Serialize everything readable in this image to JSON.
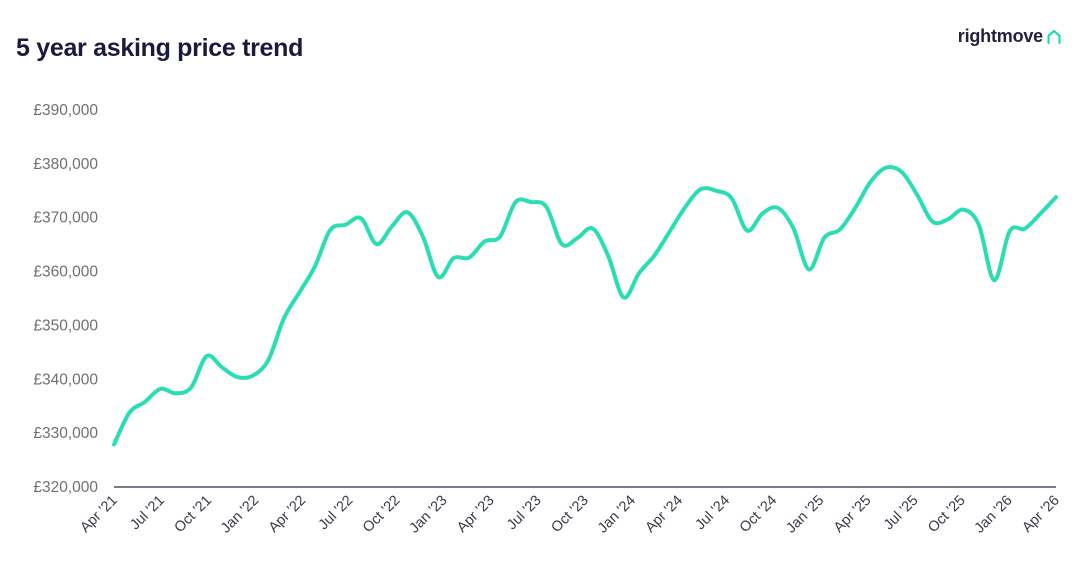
{
  "header": {
    "title": "5 year asking price trend",
    "brand": "rightmove",
    "brand_icon": "house-outline-icon",
    "brand_color": "#15d6a4"
  },
  "chart_data": {
    "type": "line",
    "title": "5 year asking price trend",
    "xlabel": "",
    "ylabel": "",
    "line_color": "#2bddb3",
    "ylim": [
      320000,
      390000
    ],
    "y_ticks": [
      320000,
      330000,
      340000,
      350000,
      360000,
      370000,
      380000,
      390000
    ],
    "y_tick_labels": [
      "£320,000",
      "£330,000",
      "£340,000",
      "£350,000",
      "£360,000",
      "£370,000",
      "£380,000",
      "£390,000"
    ],
    "x_tick_labels": [
      "Apr '21",
      "Jul '21",
      "Oct '21",
      "Jan '22",
      "Apr '22",
      "Jul '22",
      "Oct '22",
      "Jan '23",
      "Apr '23",
      "Jul '23",
      "Oct '23",
      "Jan '24",
      "Apr '24",
      "Jul '24",
      "Oct '24",
      "Jan '25",
      "Apr '25",
      "Jul '25",
      "Oct '25",
      "Jan '26",
      "Apr '26"
    ],
    "grid": false,
    "series": [
      {
        "values": [
          327900,
          333800,
          335800,
          338200,
          337400,
          338500,
          344300,
          342200,
          340400,
          340700,
          343600,
          351300,
          356100,
          360900,
          367700,
          368700,
          369900,
          365100,
          368400,
          371000,
          366500,
          359000,
          362500,
          362600,
          365600,
          366500,
          372900,
          372900,
          372000,
          365100,
          366200,
          368000,
          362900,
          355200,
          359700,
          363000,
          367500,
          372000,
          375300,
          375000,
          373600,
          367600,
          370800,
          371800,
          368000,
          360400,
          366300,
          367800,
          371800,
          376700,
          379300,
          378500,
          374300,
          369300,
          369700,
          371500,
          368700,
          358400,
          367500,
          368000,
          370800,
          373800
        ]
      }
    ]
  }
}
